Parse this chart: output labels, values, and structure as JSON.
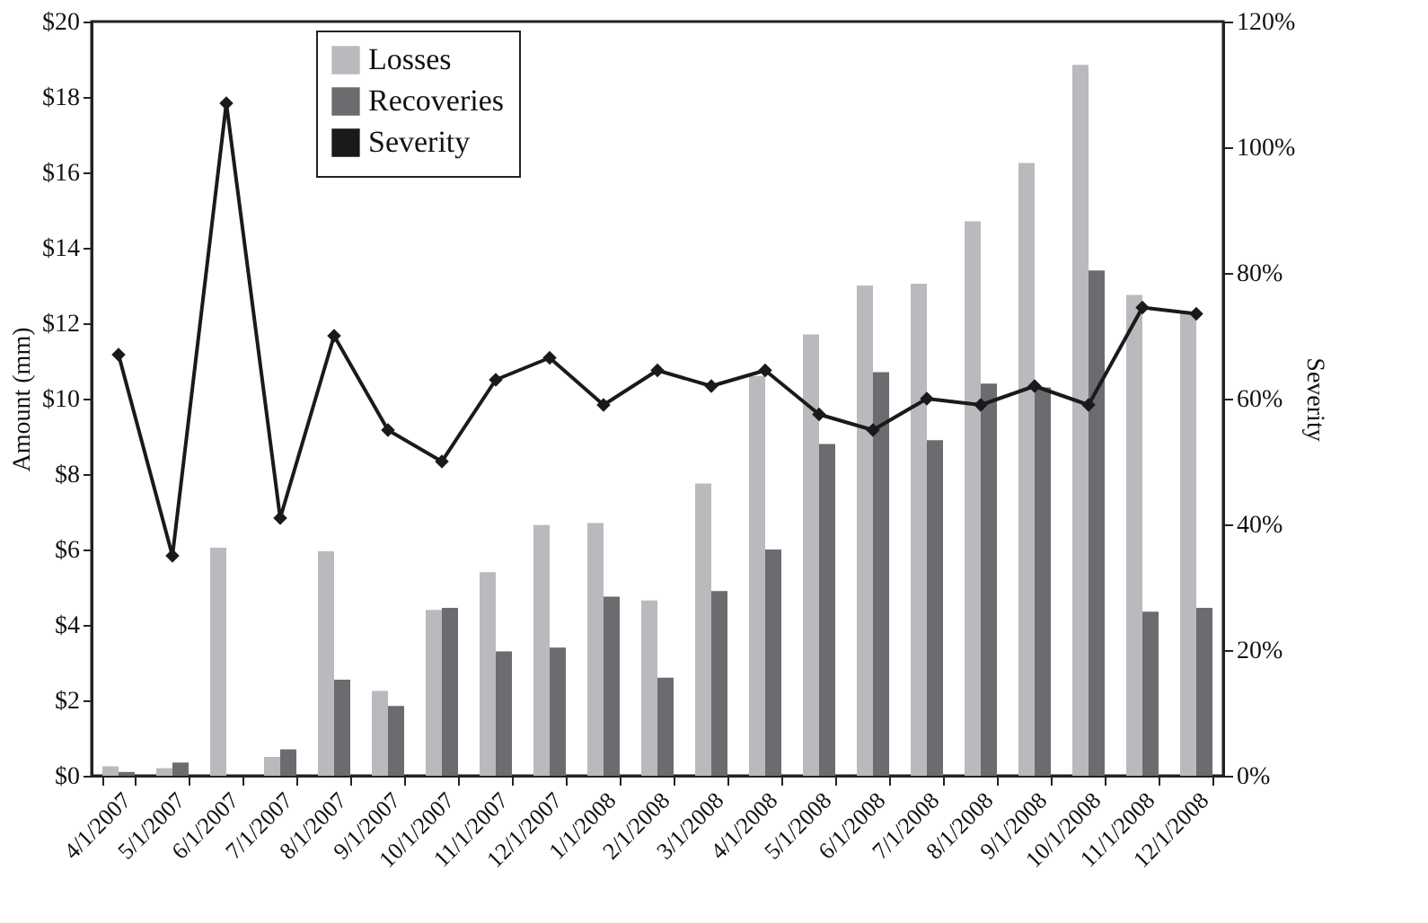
{
  "chart_data": {
    "type": "bar",
    "ylabel": "Amount (mm)",
    "y2label": "Severity",
    "categories": [
      "4/1/2007",
      "5/1/2007",
      "6/1/2007",
      "7/1/2007",
      "8/1/2007",
      "9/1/2007",
      "10/1/2007",
      "11/1/2007",
      "12/1/2007",
      "1/1/2008",
      "2/1/2008",
      "3/1/2008",
      "4/1/2008",
      "5/1/2008",
      "6/1/2008",
      "7/1/2008",
      "8/1/2008",
      "9/1/2008",
      "10/1/2008",
      "11/1/2008",
      "12/1/2008"
    ],
    "series": [
      {
        "name": "Losses",
        "color": "#b9babd",
        "values": [
          0.25,
          0.2,
          6.05,
          0.5,
          5.95,
          2.25,
          4.4,
          5.4,
          6.65,
          6.7,
          4.65,
          7.75,
          10.6,
          11.7,
          13.0,
          13.05,
          14.7,
          16.25,
          18.85,
          12.75,
          12.3
        ]
      },
      {
        "name": "Recoveries",
        "color": "#6b6c70",
        "values": [
          0.1,
          0.35,
          null,
          0.7,
          2.55,
          1.85,
          4.45,
          3.3,
          3.4,
          4.75,
          2.6,
          4.9,
          6.0,
          8.8,
          10.7,
          8.9,
          10.4,
          10.3,
          13.4,
          4.35,
          4.45
        ]
      },
      {
        "name": "Severity",
        "color": "#1a1a1a",
        "type": "line",
        "axis": "y2",
        "marker": "diamond",
        "values": [
          67,
          35,
          107,
          41,
          70,
          55,
          50,
          63,
          66.5,
          59,
          64.5,
          62,
          64.5,
          57.5,
          55,
          60,
          59,
          62,
          59,
          74.5,
          73.5
        ]
      }
    ],
    "ylim": [
      0,
      20
    ],
    "yticks": [
      {
        "value": 0,
        "label": "$0"
      },
      {
        "value": 2,
        "label": "$2"
      },
      {
        "value": 4,
        "label": "$4"
      },
      {
        "value": 6,
        "label": "$6"
      },
      {
        "value": 8,
        "label": "$8"
      },
      {
        "value": 10,
        "label": "$10"
      },
      {
        "value": 12,
        "label": "$12"
      },
      {
        "value": 14,
        "label": "$14"
      },
      {
        "value": 16,
        "label": "$16"
      },
      {
        "value": 18,
        "label": "$18"
      },
      {
        "value": 20,
        "label": "$20"
      }
    ],
    "y2lim": [
      0,
      120
    ],
    "y2ticks": [
      {
        "value": 0,
        "label": "0%"
      },
      {
        "value": 20,
        "label": "20%"
      },
      {
        "value": 40,
        "label": "40%"
      },
      {
        "value": 60,
        "label": "60%"
      },
      {
        "value": 80,
        "label": "80%"
      },
      {
        "value": 100,
        "label": "100%"
      },
      {
        "value": 120,
        "label": "120%"
      }
    ],
    "legend": "top left",
    "grid": false
  }
}
